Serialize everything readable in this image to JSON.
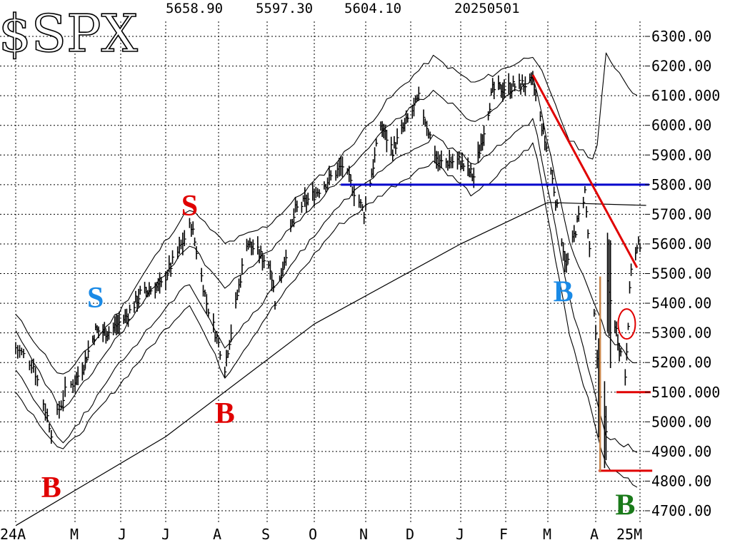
{
  "chart_data": {
    "type": "line",
    "title": "$SPX",
    "header": {
      "high": "5658.90",
      "low": "5597.30",
      "close": "5604.10",
      "date": "20250501"
    },
    "x_ticks": [
      "24A",
      "M",
      "J",
      "J",
      "A",
      "S",
      "O",
      "N",
      "D",
      "J",
      "F",
      "M",
      "A",
      "25M"
    ],
    "y_ticks": [
      "6300.00",
      "6200.00",
      "6100.000",
      "6000.00",
      "5900.00",
      "5800.00",
      "5700.00",
      "5600.00",
      "5500.00",
      "5400.00",
      "5300.00",
      "5200.00",
      "5100.000",
      "5000.00",
      "4900.00",
      "4800.00",
      "4700.00"
    ],
    "ylim": [
      4675,
      6350
    ],
    "grid": true,
    "price_series": {
      "name": "",
      "points": [
        [
          "2024-04-01",
          5250
        ],
        [
          "2024-04-10",
          5190
        ],
        [
          "2024-04-19",
          4967
        ],
        [
          "2024-04-26",
          5100
        ],
        [
          "2024-05-06",
          5180
        ],
        [
          "2024-05-15",
          5308
        ],
        [
          "2024-05-24",
          5304
        ],
        [
          "2024-06-05",
          5355
        ],
        [
          "2024-06-14",
          5431
        ],
        [
          "2024-06-28",
          5460
        ],
        [
          "2024-07-08",
          5570
        ],
        [
          "2024-07-16",
          5667
        ],
        [
          "2024-07-25",
          5400
        ],
        [
          "2024-08-05",
          5186
        ],
        [
          "2024-08-19",
          5608
        ],
        [
          "2024-09-03",
          5528
        ],
        [
          "2024-09-06",
          5408
        ],
        [
          "2024-09-19",
          5713
        ],
        [
          "2024-09-30",
          5762
        ],
        [
          "2024-10-18",
          5864
        ],
        [
          "2024-10-31",
          5705
        ],
        [
          "2024-11-11",
          6001
        ],
        [
          "2024-11-19",
          5917
        ],
        [
          "2024-12-06",
          6090
        ],
        [
          "2024-12-18",
          5872
        ],
        [
          "2024-12-31",
          5881
        ],
        [
          "2025-01-10",
          5827
        ],
        [
          "2025-01-23",
          6118
        ],
        [
          "2025-02-19",
          6144
        ],
        [
          "2025-03-03",
          5849
        ],
        [
          "2025-03-13",
          5521
        ],
        [
          "2025-03-25",
          5776
        ],
        [
          "2025-04-04",
          5074
        ],
        [
          "2025-04-08",
          4982
        ],
        [
          "2025-04-09",
          5456
        ],
        [
          "2025-04-21",
          5158
        ],
        [
          "2025-04-25",
          5525
        ],
        [
          "2025-05-01",
          5604
        ]
      ]
    },
    "moving_average_200": {
      "name": "",
      "points": [
        [
          "2024-04-01",
          4650
        ],
        [
          "2024-07-01",
          4950
        ],
        [
          "2024-10-01",
          5330
        ],
        [
          "2025-01-01",
          5600
        ],
        [
          "2025-03-01",
          5740
        ],
        [
          "2025-05-05",
          5730
        ]
      ]
    },
    "bands": [
      {
        "name": "",
        "points": [
          [
            "2024-04-01",
            5360
          ],
          [
            "2024-04-24",
            5150
          ],
          [
            "2024-06-01",
            5380
          ],
          [
            "2024-07-15",
            5720
          ],
          [
            "2024-08-05",
            5600
          ],
          [
            "2024-09-01",
            5660
          ],
          [
            "2024-10-15",
            5880
          ],
          [
            "2024-11-15",
            6080
          ],
          [
            "2024-12-15",
            6230
          ],
          [
            "2025-01-10",
            6140
          ],
          [
            "2025-02-20",
            6240
          ],
          [
            "2025-03-15",
            5950
          ],
          [
            "2025-04-01",
            5880
          ],
          [
            "2025-04-08",
            6240
          ],
          [
            "2025-05-01",
            6080
          ]
        ]
      },
      {
        "name": "",
        "points": [
          [
            "2024-04-01",
            5300
          ],
          [
            "2024-04-24",
            5040
          ],
          [
            "2024-06-01",
            5300
          ],
          [
            "2024-07-15",
            5600
          ],
          [
            "2024-08-05",
            5450
          ],
          [
            "2024-09-01",
            5570
          ],
          [
            "2024-10-15",
            5810
          ],
          [
            "2024-11-15",
            5990
          ],
          [
            "2024-12-15",
            6120
          ],
          [
            "2025-01-10",
            6010
          ],
          [
            "2025-02-20",
            6160
          ],
          [
            "2025-03-15",
            5600
          ],
          [
            "2025-04-08",
            5300
          ],
          [
            "2025-05-01",
            5180
          ]
        ]
      },
      {
        "name": "",
        "points": [
          [
            "2024-04-01",
            5180
          ],
          [
            "2024-04-24",
            4930
          ],
          [
            "2024-06-01",
            5200
          ],
          [
            "2024-07-15",
            5470
          ],
          [
            "2024-08-05",
            5250
          ],
          [
            "2024-09-01",
            5420
          ],
          [
            "2024-10-15",
            5730
          ],
          [
            "2024-11-15",
            5860
          ],
          [
            "2024-12-15",
            5960
          ],
          [
            "2025-01-10",
            5870
          ],
          [
            "2025-02-20",
            6020
          ],
          [
            "2025-03-15",
            5420
          ],
          [
            "2025-04-08",
            4950
          ],
          [
            "2025-05-01",
            4900
          ]
        ]
      },
      {
        "name": "",
        "points": [
          [
            "2024-04-01",
            5100
          ],
          [
            "2024-04-24",
            4900
          ],
          [
            "2024-06-01",
            5130
          ],
          [
            "2024-07-15",
            5400
          ],
          [
            "2024-08-05",
            5150
          ],
          [
            "2024-09-01",
            5360
          ],
          [
            "2024-10-15",
            5660
          ],
          [
            "2024-11-15",
            5780
          ],
          [
            "2024-12-15",
            5880
          ],
          [
            "2025-01-10",
            5760
          ],
          [
            "2025-02-20",
            5940
          ],
          [
            "2025-03-15",
            5300
          ],
          [
            "2025-04-08",
            4850
          ],
          [
            "2025-05-01",
            4780
          ]
        ]
      }
    ],
    "annotations": {
      "signals": [
        {
          "text": "B",
          "color": "#e00000",
          "date": "2024-04-19",
          "price": 4780
        },
        {
          "text": "S",
          "color": "#1a8ae6",
          "date": "2024-05-16",
          "price": 5420
        },
        {
          "text": "S",
          "color": "#e00000",
          "date": "2024-07-16",
          "price": 5730
        },
        {
          "text": "B",
          "color": "#e00000",
          "date": "2024-08-05",
          "price": 5030
        },
        {
          "text": "B",
          "color": "#1a8ae6",
          "date": "2025-03-11",
          "price": 5440
        },
        {
          "text": "B",
          "color": "#1a7a1a",
          "date": "2025-04-21",
          "price": 4720
        }
      ],
      "lines": [
        {
          "kind": "resistance",
          "color": "#0000cc",
          "from": [
            "2024-10-17",
            5800
          ],
          "to": [
            "2025-05-07",
            5800
          ]
        },
        {
          "kind": "downtrend",
          "color": "#e00000",
          "from": [
            "2025-02-19",
            6170
          ],
          "to": [
            "2025-04-29",
            5520
          ]
        },
        {
          "kind": "support",
          "color": "#e00000",
          "from": [
            "2025-04-15",
            5100
          ],
          "to": [
            "2025-05-08",
            5100
          ]
        },
        {
          "kind": "support",
          "color": "#e00000",
          "from": [
            "2025-04-03",
            4835
          ],
          "to": [
            "2025-05-09",
            4835
          ]
        },
        {
          "kind": "spike",
          "color": "#c8864a",
          "from": [
            "2025-04-04",
            5490
          ],
          "to": [
            "2025-04-04",
            4830
          ]
        }
      ],
      "ellipse": {
        "color": "#e00000",
        "date": "2025-04-22",
        "price": 5330
      }
    }
  }
}
